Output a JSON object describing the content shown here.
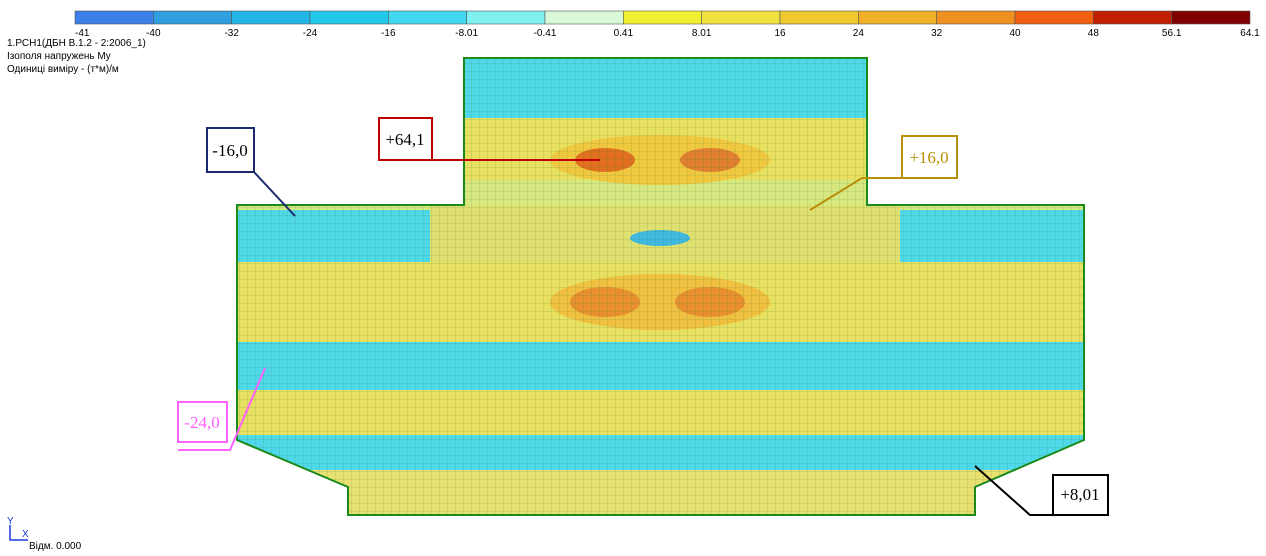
{
  "header": {
    "load_case": "1.РСН1(ДБН В.1.2 - 2:2006_1)",
    "title": "Ізополя напружень My",
    "units": "Одиниці виміру - (т*м)/м"
  },
  "legend": {
    "bounds": [
      "-41",
      "-40",
      "-32",
      "-24",
      "-16",
      "-8.01",
      "-0.41",
      "0.41",
      "8.01",
      "16",
      "24",
      "32",
      "40",
      "48",
      "56.1",
      "64.1"
    ],
    "colors": [
      "#3d7fe8",
      "#2f9fe0",
      "#22b6e6",
      "#22c8e8",
      "#44d8f0",
      "#7ff0f0",
      "#d8f8d8",
      "#f0f030",
      "#f0e040",
      "#f0c830",
      "#f0b028",
      "#f09020",
      "#f06010",
      "#c02000",
      "#800000"
    ]
  },
  "callouts": [
    {
      "label": "-16,0",
      "color": "#1a2a6c"
    },
    {
      "label": "+64,1",
      "color": "#c00000"
    },
    {
      "label": "+16,0",
      "color": "#b8900a"
    },
    {
      "label": "-24,0",
      "color": "#ff60ff"
    },
    {
      "label": "+8,01",
      "color": "#000000"
    }
  ],
  "axes": {
    "y": "Y",
    "x": "X",
    "level": "Відм. 0.000"
  }
}
